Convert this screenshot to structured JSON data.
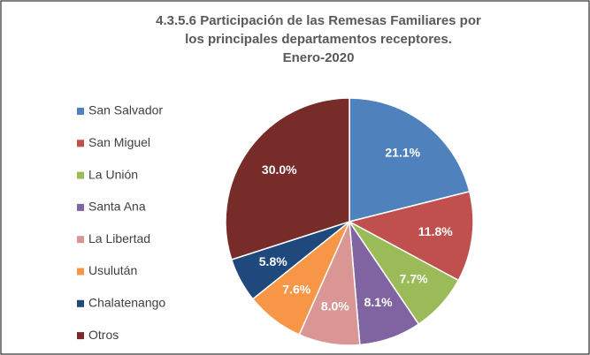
{
  "chart_data": {
    "type": "pie",
    "title": [
      "4.3.5.6 Participación de las Remesas Familiares por",
      "los principales departamentos receptores.",
      "Enero-2020"
    ],
    "categories": [
      "San Salvador",
      "San Miguel",
      "La Unión",
      "Santa Ana",
      "La Libertad",
      "Usulután",
      "Chalatenango",
      "Otros"
    ],
    "values": [
      21.1,
      11.8,
      7.7,
      8.1,
      8.0,
      7.6,
      5.8,
      30.0
    ],
    "value_labels": [
      "21.1%",
      "11.8%",
      "7.7%",
      "8.1%",
      "8.0%",
      "7.6%",
      "5.8%",
      "30.0%"
    ],
    "colors": [
      "#4f81bd",
      "#c0504d",
      "#9bbb59",
      "#8064a2",
      "#d99694",
      "#f79646",
      "#1f497d",
      "#772c2a"
    ],
    "legend": "left"
  }
}
